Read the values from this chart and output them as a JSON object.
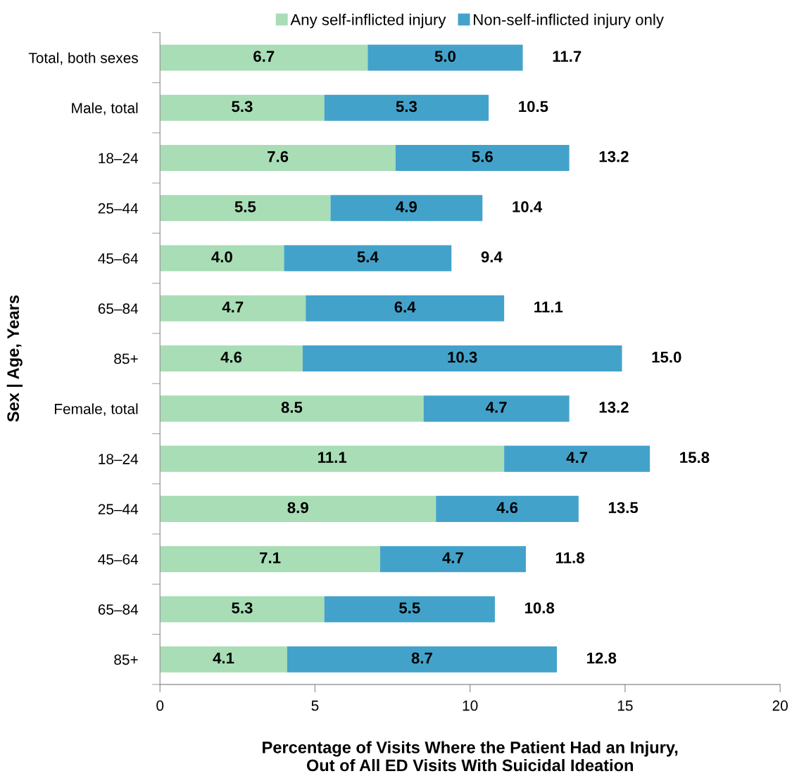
{
  "chart_data": {
    "type": "bar",
    "orientation": "horizontal",
    "stacked": true,
    "xlabel": "Percentage of Visits Where the Patient Had an Injury,\nOut of All ED Visits With Suicidal Ideation",
    "ylabel": "Sex | Age, Years",
    "categories": [
      "Total, both sexes",
      "Male, total",
      "18–24",
      "25–44",
      "45–64",
      "65–84",
      "85+",
      "Female, total",
      "18–24",
      "25–44",
      "45–64",
      "65–84",
      "85+"
    ],
    "series": [
      {
        "name": "Any self-inflicted injury",
        "color": "#a8ddb5",
        "values": [
          6.7,
          5.3,
          7.6,
          5.5,
          4.0,
          4.7,
          4.6,
          8.5,
          11.1,
          8.9,
          7.1,
          5.3,
          4.1
        ],
        "value_labels": [
          "6.7",
          "5.3",
          "7.6",
          "5.5",
          "4.0",
          "4.7",
          "4.6",
          "8.5",
          "11.1",
          "8.9",
          "7.1",
          "5.3",
          "4.1"
        ]
      },
      {
        "name": "Non-self-inflicted injury only",
        "color": "#43a2ca",
        "values": [
          5.0,
          5.3,
          5.6,
          4.9,
          5.4,
          6.4,
          10.3,
          4.7,
          4.7,
          4.6,
          4.7,
          5.5,
          8.7
        ],
        "value_labels": [
          "5.0",
          "5.3",
          "5.6",
          "4.9",
          "5.4",
          "6.4",
          "10.3",
          "4.7",
          "4.7",
          "4.6",
          "4.7",
          "5.5",
          "8.7"
        ]
      }
    ],
    "totals": [
      "11.7",
      "10.5",
      "13.2",
      "10.4",
      "9.4",
      "11.1",
      "15.0",
      "13.2",
      "15.8",
      "13.5",
      "11.8",
      "10.8",
      "12.8"
    ],
    "xlim": [
      0,
      20
    ],
    "xticks": [
      0,
      5,
      10,
      15,
      20
    ],
    "grid": false,
    "legend": "top"
  }
}
